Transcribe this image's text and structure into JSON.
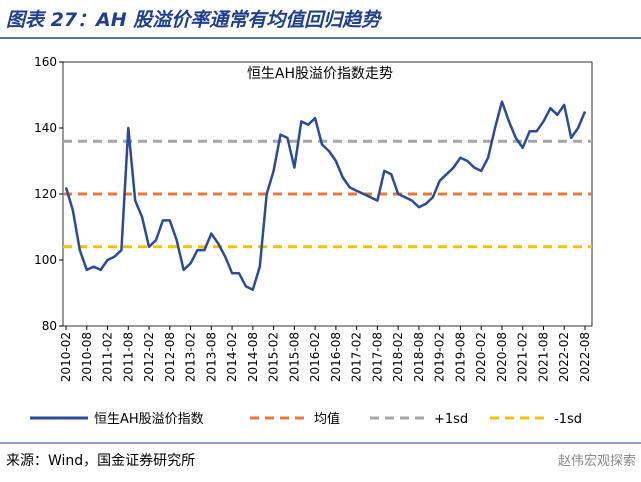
{
  "title": "图表 27：AH 股溢价率通常有均值回归趋势",
  "source": "来源：Wind，国金证券研究所",
  "watermark": "赵伟宏观探索",
  "chart_data": {
    "type": "line",
    "title": "恒生AH股溢价指数走势",
    "categories": [
      "2010-02",
      null,
      null,
      "2010-08",
      null,
      null,
      "2011-02",
      null,
      null,
      "2011-08",
      null,
      null,
      "2012-02",
      null,
      null,
      "2012-08",
      null,
      null,
      "2013-02",
      null,
      null,
      "2013-08",
      null,
      null,
      "2014-02",
      null,
      null,
      "2014-08",
      null,
      null,
      "2015-02",
      null,
      null,
      "2015-08",
      null,
      null,
      "2016-02",
      null,
      null,
      "2016-08",
      null,
      null,
      "2017-02",
      null,
      null,
      "2017-08",
      null,
      null,
      "2018-02",
      null,
      null,
      "2018-08",
      null,
      null,
      "2019-02",
      null,
      null,
      "2019-08",
      null,
      null,
      "2020-02",
      null,
      null,
      "2020-08",
      null,
      null,
      "2021-02",
      null,
      null,
      "2021-08",
      null,
      null,
      "2022-02",
      null,
      null,
      "2022-08"
    ],
    "series": [
      {
        "name": "恒生AH股溢价指数",
        "color": "#2b4a9a",
        "values": [
          122,
          115,
          103,
          97,
          98,
          97,
          100,
          101,
          103,
          140,
          118,
          113,
          104,
          106,
          112,
          112,
          106,
          97,
          99,
          103,
          103,
          108,
          105,
          101,
          96,
          96,
          92,
          91,
          98,
          120,
          127,
          138,
          137,
          128,
          142,
          141,
          143,
          135,
          133,
          130,
          125,
          122,
          121,
          120,
          119,
          118,
          127,
          126,
          120,
          119,
          118,
          116,
          117,
          119,
          124,
          126,
          128,
          131,
          130,
          128,
          127,
          131,
          140,
          148,
          142,
          137,
          134,
          139,
          139,
          142,
          146,
          144,
          147,
          137,
          140,
          145
        ]
      }
    ],
    "reference_lines": [
      {
        "name": "均值",
        "value": 120,
        "color": "#e8793a"
      },
      {
        "name": "+1sd",
        "value": 136,
        "color": "#a6a6a6"
      },
      {
        "name": "-1sd",
        "value": 104,
        "color": "#f2c200"
      }
    ],
    "ylim": [
      80,
      160
    ],
    "yticks": [
      80,
      100,
      120,
      140,
      160
    ]
  }
}
